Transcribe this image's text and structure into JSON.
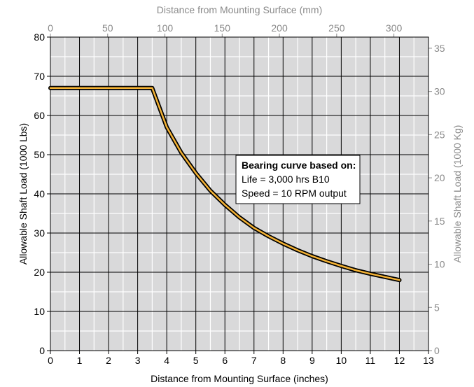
{
  "chart_data": {
    "type": "line",
    "x_label_bottom": "Distance from Mounting Surface (inches)",
    "x_label_top": "Distance from Mounting Surface (mm)",
    "y_label_left": "Allowable Shaft Load (1000 Lbs)",
    "y_label_right": "Allowable Shaft Load (1000 Kg)",
    "x_ticks": [
      "0",
      "1",
      "2",
      "3",
      "4",
      "5",
      "6",
      "7",
      "8",
      "9",
      "10",
      "11",
      "12",
      "13"
    ],
    "y_ticks": [
      "0",
      "10",
      "20",
      "30",
      "40",
      "50",
      "60",
      "70",
      "80"
    ],
    "x2_ticks": [
      "0",
      "50",
      "100",
      "150",
      "200",
      "250",
      "300"
    ],
    "y2_ticks": [
      "0",
      "5",
      "10",
      "15",
      "20",
      "25",
      "30",
      "35"
    ],
    "xlim": [
      0,
      13
    ],
    "ylim": [
      0,
      80
    ],
    "x2lim_mm": [
      0,
      330.2
    ],
    "y2lim_kg": [
      0,
      36.29
    ],
    "grid": true,
    "series": [
      {
        "x": [
          0,
          3.5,
          3.75,
          4,
          4.5,
          5,
          5.5,
          6,
          6.5,
          7,
          7.5,
          8,
          8.5,
          9,
          9.5,
          10,
          10.5,
          11,
          11.5,
          12
        ],
        "y": [
          67,
          67,
          62,
          57,
          50.5,
          45.3,
          40.8,
          37.2,
          34,
          31.3,
          29.2,
          27.3,
          25.6,
          24.1,
          22.8,
          21.6,
          20.5,
          19.6,
          18.8,
          18
        ]
      }
    ],
    "annotation": {
      "title": "Bearing curve based on:",
      "lines": [
        "Life = 3,000 hrs B10",
        "Speed = 10 RPM output"
      ]
    },
    "colors": {
      "plot_bg": "#d9d9da",
      "grid": "#ffffff",
      "curve_outer": "#000000",
      "curve_inner": "#f5b335",
      "secondary_axis": "#8a8a8a"
    }
  }
}
